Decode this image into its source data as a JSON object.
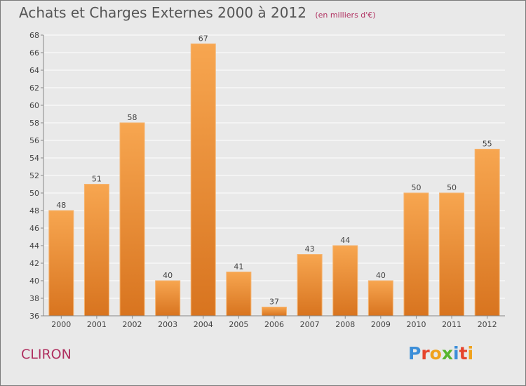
{
  "chart_data": {
    "type": "bar",
    "title": "Achats et Charges Externes 2000 à 2012",
    "subtitle": "(en milliers d'€)",
    "categories": [
      "2000",
      "2001",
      "2002",
      "2003",
      "2004",
      "2005",
      "2006",
      "2007",
      "2008",
      "2009",
      "2010",
      "2011",
      "2012"
    ],
    "values": [
      48,
      51,
      58,
      40,
      67,
      41,
      37,
      43,
      44,
      40,
      50,
      50,
      55
    ],
    "ylim": [
      36,
      68
    ],
    "yticks": [
      36,
      38,
      40,
      42,
      44,
      46,
      48,
      50,
      52,
      54,
      56,
      58,
      60,
      62,
      64,
      66,
      68
    ],
    "grid": true,
    "bar_color_top": "#f7a650",
    "bar_color_bottom": "#d8741f"
  },
  "footer": {
    "commune": "CLIRON",
    "logo_letters": [
      {
        "ch": "P",
        "color": "#3c8ed8"
      },
      {
        "ch": "r",
        "color": "#e6442c"
      },
      {
        "ch": "o",
        "color": "#f0a21c"
      },
      {
        "ch": "x",
        "color": "#58b62e"
      },
      {
        "ch": "i",
        "color": "#3c8ed8"
      },
      {
        "ch": "t",
        "color": "#e6442c"
      },
      {
        "ch": "i",
        "color": "#f0a21c"
      }
    ]
  }
}
